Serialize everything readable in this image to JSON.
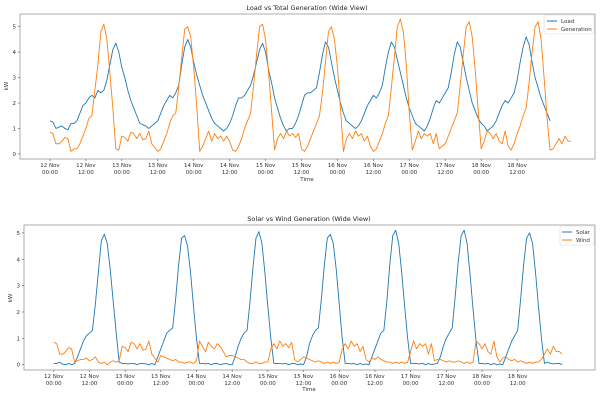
{
  "chart_data": [
    {
      "type": "line",
      "title": "Load vs Total Generation (Wide View)",
      "xlabel": "Time",
      "ylabel": "kW",
      "ylim": [
        -0.2,
        5.5
      ],
      "yticks": [
        0,
        1,
        2,
        3,
        4,
        5
      ],
      "x_unit": "hours since 12 Nov 00:00",
      "xlim_hours": [
        -10,
        182
      ],
      "xticks": [
        {
          "hour": 0,
          "line1": "12 Nov",
          "line2": "00:00"
        },
        {
          "hour": 12,
          "line1": "12 Nov",
          "line2": "12:00"
        },
        {
          "hour": 24,
          "line1": "13 Nov",
          "line2": "00:00"
        },
        {
          "hour": 36,
          "line1": "13 Nov",
          "line2": "12:00"
        },
        {
          "hour": 48,
          "line1": "14 Nov",
          "line2": "00:00"
        },
        {
          "hour": 60,
          "line1": "14 Nov",
          "line2": "12:00"
        },
        {
          "hour": 72,
          "line1": "15 Nov",
          "line2": "00:00"
        },
        {
          "hour": 84,
          "line1": "15 Nov",
          "line2": "12:00"
        },
        {
          "hour": 96,
          "line1": "16 Nov",
          "line2": "00:00"
        },
        {
          "hour": 108,
          "line1": "16 Nov",
          "line2": "12:00"
        },
        {
          "hour": 120,
          "line1": "17 Nov",
          "line2": "00:00"
        },
        {
          "hour": 132,
          "line1": "17 Nov",
          "line2": "12:00"
        },
        {
          "hour": 144,
          "line1": "18 Nov",
          "line2": "00:00"
        },
        {
          "hour": 156,
          "line1": "18 Nov",
          "line2": "12:00"
        }
      ],
      "legend_position": "top-right",
      "series": [
        {
          "name": "Load",
          "color": "#1f77b4",
          "values": [
            1.3,
            1.25,
            1.0,
            1.05,
            1.1,
            1.0,
            0.95,
            1.2,
            1.2,
            1.3,
            1.6,
            1.9,
            2.0,
            2.2,
            2.3,
            2.2,
            2.5,
            2.4,
            2.5,
            2.9,
            3.5,
            4.1,
            4.35,
            4.0,
            3.4,
            3.0,
            2.5,
            2.1,
            1.8,
            1.5,
            1.2,
            1.15,
            1.1,
            1.0,
            1.1,
            1.2,
            1.3,
            1.6,
            1.9,
            2.1,
            2.3,
            2.2,
            2.4,
            2.7,
            3.5,
            4.2,
            4.5,
            4.2,
            3.6,
            3.1,
            2.7,
            2.3,
            2.0,
            1.7,
            1.4,
            1.2,
            1.1,
            1.0,
            0.9,
            1.0,
            1.2,
            1.5,
            1.9,
            2.2,
            2.2,
            2.3,
            2.5,
            2.7,
            3.1,
            3.6,
            4.1,
            4.35,
            4.0,
            3.3,
            2.8,
            2.2,
            1.8,
            1.4,
            1.1,
            0.9,
            1.0,
            1.0,
            1.2,
            1.5,
            1.9,
            2.3,
            2.4,
            2.4,
            2.5,
            2.6,
            3.2,
            3.9,
            4.4,
            4.2,
            3.6,
            3.0,
            2.5,
            2.0,
            1.6,
            1.3,
            1.2,
            1.1,
            1.0,
            1.1,
            1.3,
            1.6,
            1.9,
            2.1,
            2.3,
            2.2,
            2.4,
            2.7,
            3.4,
            4.0,
            4.4,
            4.2,
            3.7,
            3.2,
            2.7,
            2.2,
            1.8,
            1.5,
            1.2,
            1.1,
            1.0,
            0.9,
            1.1,
            1.4,
            1.8,
            2.1,
            2.0,
            2.2,
            2.4,
            2.6,
            3.2,
            3.9,
            4.4,
            4.2,
            3.6,
            3.0,
            2.5,
            2.0,
            1.7,
            1.4,
            1.2,
            1.1,
            0.9,
            1.0,
            1.1,
            1.3,
            1.6,
            1.9,
            2.1,
            2.0,
            2.2,
            2.4,
            2.9,
            3.6,
            4.2,
            4.6,
            4.3,
            3.6,
            3.0,
            2.6,
            2.2,
            1.9,
            1.6,
            1.3
          ]
        },
        {
          "name": "Generation",
          "color": "#ff7f0e",
          "values": [
            0.85,
            0.8,
            0.4,
            0.4,
            0.5,
            0.65,
            0.6,
            0.1,
            0.2,
            0.2,
            0.4,
            0.7,
            1.0,
            1.4,
            1.5,
            2.5,
            3.5,
            4.8,
            5.1,
            4.5,
            3.2,
            1.8,
            0.2,
            0.15,
            0.7,
            0.65,
            0.5,
            0.85,
            0.8,
            0.6,
            0.8,
            0.55,
            0.6,
            0.9,
            0.4,
            0.25,
            0.1,
            0.2,
            0.5,
            0.8,
            1.2,
            1.5,
            1.6,
            2.6,
            3.8,
            4.9,
            5.0,
            4.6,
            3.4,
            1.9,
            0.1,
            0.3,
            0.6,
            0.9,
            0.5,
            0.8,
            0.6,
            0.7,
            0.5,
            0.7,
            0.5,
            0.15,
            0.1,
            0.3,
            0.6,
            1.0,
            1.3,
            1.6,
            2.7,
            3.9,
            5.0,
            5.1,
            4.5,
            3.2,
            1.7,
            0.15,
            0.6,
            0.8,
            0.6,
            0.9,
            0.7,
            0.8,
            0.65,
            0.8,
            0.2,
            0.1,
            0.3,
            0.6,
            0.9,
            1.2,
            1.5,
            2.4,
            3.6,
            4.8,
            5.0,
            4.5,
            3.4,
            1.8,
            0.1,
            0.6,
            0.8,
            0.6,
            0.9,
            0.7,
            0.8,
            0.5,
            0.7,
            0.3,
            0.1,
            0.2,
            0.5,
            0.8,
            1.2,
            1.5,
            2.6,
            3.8,
            5.0,
            5.3,
            4.8,
            3.5,
            1.6,
            0.15,
            0.5,
            0.9,
            0.6,
            0.8,
            0.7,
            0.8,
            0.4,
            0.8,
            0.2,
            0.3,
            0.4,
            0.7,
            1.0,
            1.3,
            1.6,
            2.7,
            3.9,
            5.0,
            5.2,
            4.6,
            3.3,
            1.7,
            0.2,
            0.5,
            0.9,
            0.8,
            0.6,
            0.8,
            0.5,
            0.4,
            0.9,
            0.3,
            0.15,
            0.4,
            0.8,
            1.1,
            1.5,
            1.8,
            2.8,
            4.0,
            5.0,
            5.2,
            4.5,
            3.0,
            1.4,
            0.15,
            0.2,
            0.4,
            0.6,
            0.4,
            0.7,
            0.5,
            0.5
          ]
        }
      ]
    },
    {
      "type": "line",
      "title": "Solar vs Wind Generation (Wide View)",
      "xlabel": "Time",
      "ylabel": "kW",
      "ylim": [
        -0.2,
        5.3
      ],
      "yticks": [
        0,
        1,
        2,
        3,
        4,
        5
      ],
      "x_unit": "hours since 12 Nov 00:00",
      "xlim_hours": [
        -10,
        182
      ],
      "xticks": [
        {
          "hour": 0,
          "line1": "12 Nov",
          "line2": "00:00"
        },
        {
          "hour": 12,
          "line1": "12 Nov",
          "line2": "12:00"
        },
        {
          "hour": 24,
          "line1": "13 Nov",
          "line2": "00:00"
        },
        {
          "hour": 36,
          "line1": "13 Nov",
          "line2": "12:00"
        },
        {
          "hour": 48,
          "line1": "14 Nov",
          "line2": "00:00"
        },
        {
          "hour": 60,
          "line1": "14 Nov",
          "line2": "12:00"
        },
        {
          "hour": 72,
          "line1": "15 Nov",
          "line2": "00:00"
        },
        {
          "hour": 84,
          "line1": "15 Nov",
          "line2": "12:00"
        },
        {
          "hour": 96,
          "line1": "16 Nov",
          "line2": "00:00"
        },
        {
          "hour": 108,
          "line1": "16 Nov",
          "line2": "12:00"
        },
        {
          "hour": 120,
          "line1": "17 Nov",
          "line2": "00:00"
        },
        {
          "hour": 132,
          "line1": "17 Nov",
          "line2": "12:00"
        },
        {
          "hour": 144,
          "line1": "18 Nov",
          "line2": "00:00"
        },
        {
          "hour": 156,
          "line1": "18 Nov",
          "line2": "12:00"
        }
      ],
      "legend_position": "top-right",
      "series": [
        {
          "name": "Solar",
          "color": "#1f77b4",
          "values": [
            0.05,
            0.05,
            0.1,
            0.02,
            0.0,
            0.05,
            0.0,
            0.05,
            0.3,
            0.6,
            0.9,
            1.1,
            1.2,
            1.3,
            2.3,
            3.5,
            4.7,
            4.95,
            4.6,
            3.6,
            2.4,
            1.2,
            0.1,
            0.05,
            0.05,
            0.03,
            0.05,
            0.05,
            0.0,
            0.05,
            0.05,
            0.03,
            0.0,
            0.05,
            0.0,
            0.3,
            0.6,
            0.9,
            1.2,
            1.3,
            1.4,
            2.5,
            3.8,
            4.8,
            4.9,
            4.5,
            3.5,
            2.2,
            1.0,
            0.05,
            0.05,
            0.03,
            0.05,
            0.0,
            0.05,
            0.05,
            0.0,
            0.03,
            0.05,
            0.0,
            0.0,
            0.3,
            0.7,
            1.0,
            1.2,
            1.3,
            2.4,
            3.7,
            4.8,
            5.05,
            4.6,
            3.5,
            2.2,
            1.0,
            0.05,
            0.05,
            0.05,
            0.03,
            0.05,
            0.0,
            0.05,
            0.05,
            0.0,
            0.03,
            0.0,
            0.3,
            0.8,
            1.1,
            1.3,
            1.4,
            2.5,
            3.8,
            4.8,
            4.95,
            4.6,
            3.6,
            2.3,
            1.0,
            0.05,
            0.05,
            0.03,
            0.05,
            0.0,
            0.05,
            0.0,
            0.03,
            0.0,
            0.3,
            0.6,
            0.9,
            1.2,
            1.3,
            2.4,
            3.8,
            4.9,
            5.1,
            4.6,
            3.5,
            2.2,
            1.0,
            0.05,
            0.05,
            0.05,
            0.03,
            0.05,
            0.0,
            0.05,
            0.0,
            0.03,
            0.05,
            0.3,
            0.7,
            1.0,
            1.2,
            1.4,
            2.6,
            3.9,
            4.9,
            5.1,
            4.6,
            3.4,
            2.1,
            0.9,
            0.05,
            0.05,
            0.03,
            0.05,
            0.0,
            0.05,
            0.0,
            0.03,
            0.0,
            0.3,
            0.6,
            0.9,
            1.1,
            1.3,
            2.5,
            3.8,
            4.8,
            5.0,
            4.6,
            3.5,
            2.2,
            1.0,
            0.05,
            0.1,
            0.05,
            0.03,
            0.05,
            0.05,
            0.0
          ]
        },
        {
          "name": "Wind",
          "color": "#ff7f0e",
          "values": [
            0.85,
            0.8,
            0.4,
            0.4,
            0.5,
            0.65,
            0.6,
            0.1,
            0.15,
            0.2,
            0.2,
            0.25,
            0.15,
            0.2,
            0.3,
            0.1,
            0.05,
            0.1,
            0.0,
            0.1,
            0.15,
            0.1,
            0.15,
            0.7,
            0.65,
            0.5,
            0.85,
            0.8,
            0.6,
            0.8,
            0.55,
            0.6,
            0.9,
            0.4,
            0.25,
            0.1,
            0.35,
            0.3,
            0.25,
            0.2,
            0.15,
            0.2,
            0.1,
            0.1,
            0.05,
            0.1,
            0.1,
            0.05,
            0.15,
            0.9,
            0.7,
            0.5,
            0.85,
            0.7,
            0.6,
            0.8,
            0.7,
            0.5,
            0.3,
            0.35,
            0.35,
            0.3,
            0.25,
            0.2,
            0.2,
            0.1,
            0.05,
            0.05,
            0.1,
            0.05,
            0.05,
            0.1,
            0.1,
            0.6,
            0.8,
            0.6,
            0.9,
            0.7,
            0.8,
            0.65,
            0.85,
            0.2,
            0.1,
            0.2,
            0.3,
            0.25,
            0.2,
            0.15,
            0.1,
            0.15,
            0.1,
            0.05,
            0.1,
            0.05,
            0.1,
            0.05,
            0.1,
            0.6,
            0.8,
            0.6,
            0.9,
            0.7,
            0.8,
            0.5,
            0.7,
            0.2,
            0.1,
            0.25,
            0.2,
            0.3,
            0.2,
            0.15,
            0.1,
            0.1,
            0.05,
            0.1,
            0.05,
            0.1,
            0.05,
            0.1,
            0.5,
            0.9,
            0.6,
            0.8,
            0.7,
            0.8,
            0.4,
            0.8,
            0.15,
            0.2,
            0.2,
            0.15,
            0.1,
            0.15,
            0.1,
            0.1,
            0.15,
            0.1,
            0.05,
            0.1,
            0.05,
            0.1,
            0.9,
            0.8,
            0.6,
            0.8,
            0.5,
            0.4,
            0.9,
            0.3,
            0.1,
            0.25,
            0.3,
            0.2,
            0.15,
            0.2,
            0.1,
            0.15,
            0.1,
            0.05,
            0.1,
            0.05,
            0.1,
            0.1,
            0.2,
            0.4,
            0.6,
            0.4,
            0.7,
            0.5,
            0.5,
            0.4
          ]
        }
      ]
    }
  ]
}
